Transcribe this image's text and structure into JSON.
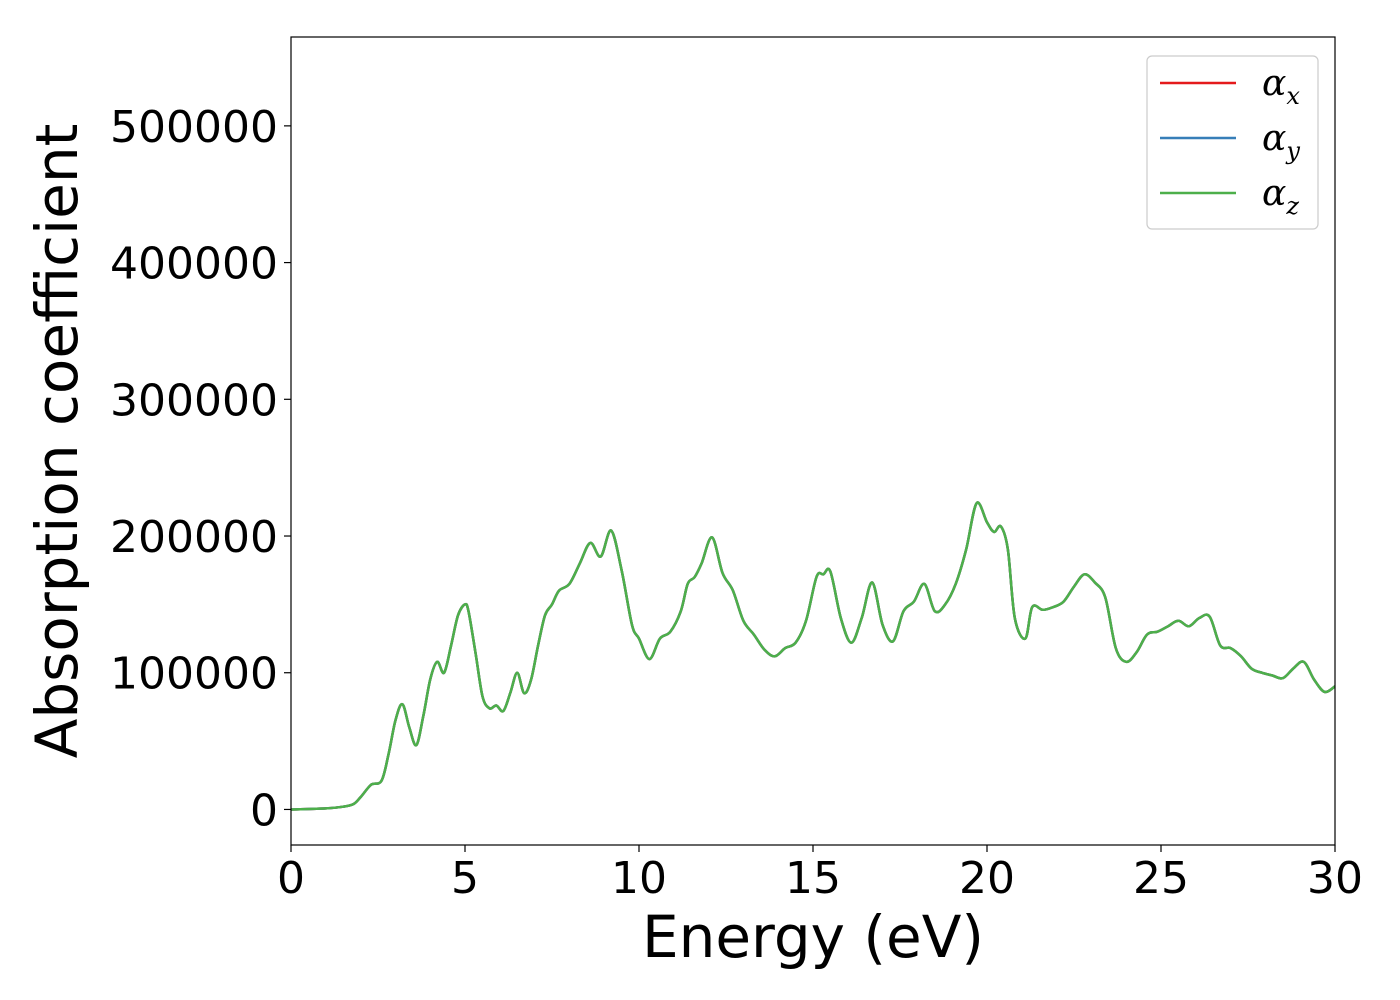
{
  "chart_data": {
    "type": "line",
    "title": "",
    "xlabel": "Energy (eV)",
    "ylabel": "Absorption coefficient",
    "xlim": [
      0,
      30
    ],
    "ylim": [
      -26000,
      565000
    ],
    "x_ticks": [
      0,
      5,
      10,
      15,
      20,
      25,
      30
    ],
    "x_tick_labels": [
      "0",
      "5",
      "10",
      "15",
      "20",
      "25",
      "30"
    ],
    "y_ticks": [
      0,
      100000,
      200000,
      300000,
      400000,
      500000
    ],
    "y_tick_labels": [
      "0",
      "100000",
      "200000",
      "300000",
      "400000",
      "500000"
    ],
    "grid": false,
    "legend_placement": "top-right",
    "legend": [
      {
        "base": "α",
        "sub": "x",
        "color": "#e41a1c"
      },
      {
        "base": "α",
        "sub": "y",
        "color": "#377eb8"
      },
      {
        "base": "α",
        "sub": "z",
        "color": "#4daf4a"
      }
    ],
    "series": [
      {
        "color": "#e41a1c",
        "x": [
          0,
          1,
          1.5,
          1.8,
          2.0,
          2.3,
          2.6,
          2.8,
          3.0,
          3.2,
          3.4,
          3.6,
          3.8,
          4.0,
          4.2,
          4.4,
          4.6,
          4.8,
          5.0,
          5.1,
          5.3,
          5.5,
          5.7,
          5.9,
          6.1,
          6.3,
          6.5,
          6.7,
          6.9,
          7.1,
          7.3,
          7.5,
          7.7,
          8.0,
          8.3,
          8.6,
          8.9,
          9.2,
          9.5,
          9.8,
          10.0,
          10.3,
          10.6,
          10.9,
          11.2,
          11.4,
          11.6,
          11.8,
          12.1,
          12.4,
          12.7,
          13.0,
          13.3,
          13.6,
          13.9,
          14.2,
          14.5,
          14.8,
          15.1,
          15.3,
          15.5,
          15.8,
          16.1,
          16.4,
          16.7,
          17.0,
          17.3,
          17.6,
          17.9,
          18.2,
          18.5,
          18.8,
          19.1,
          19.4,
          19.7,
          20.0,
          20.2,
          20.4,
          20.6,
          20.8,
          21.1,
          21.3,
          21.6,
          21.9,
          22.2,
          22.5,
          22.8,
          23.1,
          23.4,
          23.7,
          24.0,
          24.3,
          24.6,
          24.9,
          25.2,
          25.5,
          25.8,
          26.1,
          26.4,
          26.7,
          27.0,
          27.3,
          27.6,
          27.9,
          28.2,
          28.5,
          28.8,
          29.1,
          29.4,
          29.7,
          30.0
        ],
        "y": [
          0,
          800,
          2000,
          4000,
          9000,
          18000,
          21000,
          40000,
          65000,
          77000,
          60000,
          47000,
          68000,
          95000,
          108000,
          100000,
          120000,
          142000,
          150000,
          145000,
          115000,
          83000,
          74000,
          76000,
          72000,
          85000,
          100000,
          85000,
          95000,
          120000,
          142000,
          150000,
          160000,
          165000,
          180000,
          195000,
          185000,
          204000,
          175000,
          135000,
          125000,
          110000,
          125000,
          130000,
          145000,
          165000,
          170000,
          180000,
          199000,
          173000,
          160000,
          138000,
          128000,
          117000,
          112000,
          118000,
          122000,
          138000,
          170000,
          172000,
          174000,
          140000,
          122000,
          140000,
          166000,
          135000,
          123000,
          145000,
          152000,
          165000,
          145000,
          150000,
          165000,
          190000,
          224000,
          210000,
          203000,
          207000,
          190000,
          140000,
          125000,
          148000,
          146000,
          148000,
          152000,
          163000,
          172000,
          166000,
          155000,
          118000,
          108000,
          115000,
          128000,
          130000,
          134000,
          138000,
          134000,
          140000,
          141000,
          120000,
          118000,
          112000,
          103000,
          100000,
          98000,
          96000,
          103000,
          108000,
          95000,
          86000,
          90000
        ]
      },
      {
        "color": "#377eb8",
        "x": [
          0,
          1,
          1.5,
          1.8,
          2.0,
          2.3,
          2.6,
          2.8,
          3.0,
          3.2,
          3.4,
          3.6,
          3.8,
          4.0,
          4.2,
          4.4,
          4.6,
          4.8,
          5.0,
          5.1,
          5.3,
          5.5,
          5.7,
          5.9,
          6.1,
          6.3,
          6.5,
          6.7,
          6.9,
          7.1,
          7.3,
          7.5,
          7.7,
          8.0,
          8.3,
          8.6,
          8.9,
          9.2,
          9.5,
          9.8,
          10.0,
          10.3,
          10.6,
          10.9,
          11.2,
          11.4,
          11.6,
          11.8,
          12.1,
          12.4,
          12.7,
          13.0,
          13.3,
          13.6,
          13.9,
          14.2,
          14.5,
          14.8,
          15.1,
          15.3,
          15.5,
          15.8,
          16.1,
          16.4,
          16.7,
          17.0,
          17.3,
          17.6,
          17.9,
          18.2,
          18.5,
          18.8,
          19.1,
          19.4,
          19.7,
          20.0,
          20.2,
          20.4,
          20.6,
          20.8,
          21.1,
          21.3,
          21.6,
          21.9,
          22.2,
          22.5,
          22.8,
          23.1,
          23.4,
          23.7,
          24.0,
          24.3,
          24.6,
          24.9,
          25.2,
          25.5,
          25.8,
          26.1,
          26.4,
          26.7,
          27.0,
          27.3,
          27.6,
          27.9,
          28.2,
          28.5,
          28.8,
          29.1,
          29.4,
          29.7,
          30.0
        ],
        "y": [
          0,
          800,
          2000,
          4000,
          9000,
          18000,
          21000,
          40000,
          65000,
          77000,
          60000,
          47000,
          68000,
          95000,
          108000,
          100000,
          120000,
          142000,
          150000,
          145000,
          115000,
          83000,
          74000,
          76000,
          72000,
          85000,
          100000,
          85000,
          95000,
          120000,
          142000,
          150000,
          160000,
          165000,
          180000,
          195000,
          185000,
          204000,
          175000,
          135000,
          125000,
          110000,
          125000,
          130000,
          145000,
          165000,
          170000,
          180000,
          199000,
          173000,
          160000,
          138000,
          128000,
          117000,
          112000,
          118000,
          122000,
          138000,
          170000,
          172000,
          174000,
          140000,
          122000,
          140000,
          166000,
          135000,
          123000,
          145000,
          152000,
          165000,
          145000,
          150000,
          165000,
          190000,
          224000,
          210000,
          203000,
          207000,
          190000,
          140000,
          125000,
          148000,
          146000,
          148000,
          152000,
          163000,
          172000,
          166000,
          155000,
          118000,
          108000,
          115000,
          128000,
          130000,
          134000,
          138000,
          134000,
          140000,
          141000,
          120000,
          118000,
          112000,
          103000,
          100000,
          98000,
          96000,
          103000,
          108000,
          95000,
          86000,
          90000
        ]
      },
      {
        "color": "#4daf4a",
        "x": [
          0,
          1,
          1.5,
          1.8,
          2.0,
          2.3,
          2.6,
          2.8,
          3.0,
          3.2,
          3.4,
          3.6,
          3.8,
          4.0,
          4.2,
          4.4,
          4.6,
          4.8,
          5.0,
          5.1,
          5.3,
          5.5,
          5.7,
          5.9,
          6.1,
          6.3,
          6.5,
          6.7,
          6.9,
          7.1,
          7.3,
          7.5,
          7.7,
          8.0,
          8.3,
          8.6,
          8.9,
          9.2,
          9.5,
          9.8,
          10.0,
          10.3,
          10.6,
          10.9,
          11.2,
          11.4,
          11.6,
          11.8,
          12.1,
          12.4,
          12.7,
          13.0,
          13.3,
          13.6,
          13.9,
          14.2,
          14.5,
          14.8,
          15.1,
          15.3,
          15.5,
          15.8,
          16.1,
          16.4,
          16.7,
          17.0,
          17.3,
          17.6,
          17.9,
          18.2,
          18.5,
          18.8,
          19.1,
          19.4,
          19.7,
          20.0,
          20.2,
          20.4,
          20.6,
          20.8,
          21.1,
          21.3,
          21.6,
          21.9,
          22.2,
          22.5,
          22.8,
          23.1,
          23.4,
          23.7,
          24.0,
          24.3,
          24.6,
          24.9,
          25.2,
          25.5,
          25.8,
          26.1,
          26.4,
          26.7,
          27.0,
          27.3,
          27.6,
          27.9,
          28.2,
          28.5,
          28.8,
          29.1,
          29.4,
          29.7,
          30.0
        ],
        "y": [
          0,
          800,
          2000,
          4000,
          9000,
          18000,
          21000,
          40000,
          65000,
          77000,
          60000,
          47000,
          68000,
          95000,
          108000,
          100000,
          120000,
          142000,
          150000,
          145000,
          115000,
          83000,
          74000,
          76000,
          72000,
          85000,
          100000,
          85000,
          95000,
          120000,
          142000,
          150000,
          160000,
          165000,
          180000,
          195000,
          185000,
          204000,
          175000,
          135000,
          125000,
          110000,
          125000,
          130000,
          145000,
          165000,
          170000,
          180000,
          199000,
          173000,
          160000,
          138000,
          128000,
          117000,
          112000,
          118000,
          122000,
          138000,
          170000,
          172000,
          174000,
          140000,
          122000,
          140000,
          166000,
          135000,
          123000,
          145000,
          152000,
          165000,
          145000,
          150000,
          165000,
          190000,
          224000,
          210000,
          203000,
          207000,
          190000,
          140000,
          125000,
          148000,
          146000,
          148000,
          152000,
          163000,
          172000,
          166000,
          155000,
          118000,
          108000,
          115000,
          128000,
          130000,
          134000,
          138000,
          134000,
          140000,
          141000,
          120000,
          118000,
          112000,
          103000,
          100000,
          98000,
          96000,
          103000,
          108000,
          95000,
          86000,
          90000
        ]
      }
    ]
  }
}
